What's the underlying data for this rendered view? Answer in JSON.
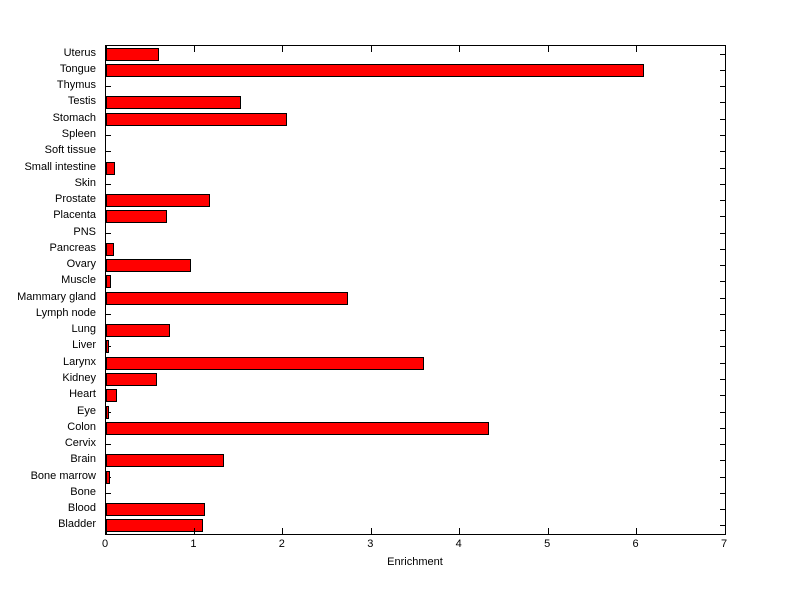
{
  "figure": {
    "background_color": "#ffffff",
    "axes_box_color": "#000000"
  },
  "chart_data": {
    "type": "bar",
    "orientation": "horizontal",
    "title": "",
    "xlabel": "Enrichment",
    "ylabel": "",
    "xlim": [
      0,
      7
    ],
    "xticks": [
      "0",
      "1",
      "2",
      "3",
      "4",
      "5",
      "6",
      "7"
    ],
    "grid": false,
    "legend": null,
    "bar_fill_color": "#ff0000",
    "bar_edge_color": "#000000",
    "categories_top_to_bottom": [
      "Uterus",
      "Tongue",
      "Thymus",
      "Testis",
      "Stomach",
      "Spleen",
      "Soft tissue",
      "Small intestine",
      "Skin",
      "Prostate",
      "Placenta",
      "PNS",
      "Pancreas",
      "Ovary",
      "Muscle",
      "Mammary gland",
      "Lymph node",
      "Lung",
      "Liver",
      "Larynx",
      "Kidney",
      "Heart",
      "Eye",
      "Colon",
      "Cervix",
      "Brain",
      "Bone marrow",
      "Bone",
      "Blood",
      "Bladder"
    ],
    "values": [
      0.59,
      6.07,
      0,
      1.52,
      2.04,
      0,
      0,
      0.09,
      0,
      1.17,
      0.68,
      0,
      0.08,
      0.95,
      0.04,
      2.72,
      0,
      0.71,
      0.02,
      3.59,
      0.57,
      0.11,
      0.02,
      4.32,
      0,
      1.32,
      0.03,
      0,
      1.11,
      1.09
    ]
  }
}
